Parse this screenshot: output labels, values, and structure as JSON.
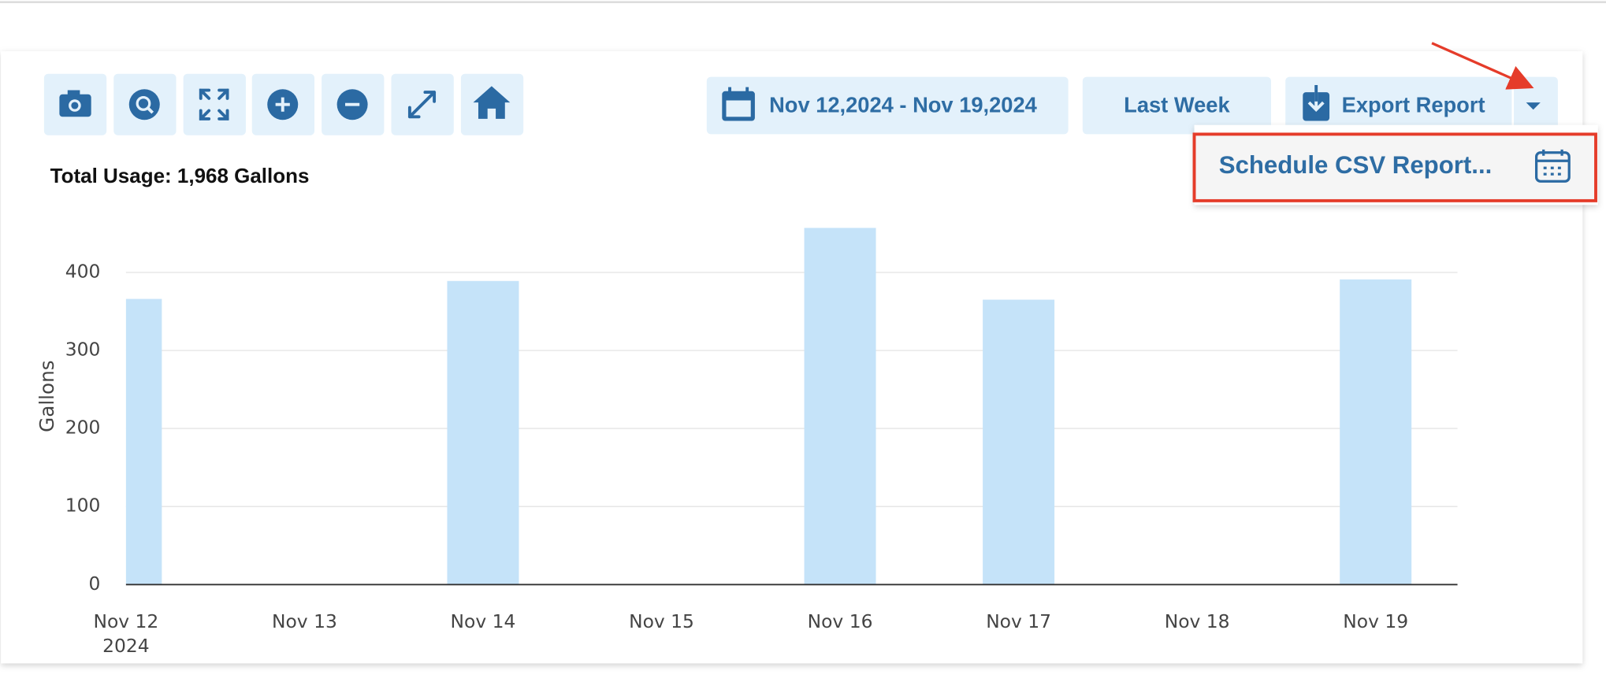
{
  "date_range": "Nov 12,2024 - Nov 19,2024",
  "preset_button": "Last Week",
  "export_button": "Export Report",
  "dropdown": {
    "items": [
      "Schedule CSV Report..."
    ]
  },
  "chart_data": {
    "type": "bar",
    "summary": "Total Usage: 1,968 Gallons",
    "y_label": "Gallons",
    "categories": [
      "Nov 12",
      "Nov 13",
      "Nov 14",
      "Nov 15",
      "Nov 16",
      "Nov 17",
      "Nov 18",
      "Nov 19"
    ],
    "year_label": "2024",
    "values": [
      366,
      null,
      389,
      null,
      457,
      365,
      null,
      391
    ],
    "color": "#c5e3f9",
    "ylim": [
      0,
      480
    ],
    "yticks": [
      0,
      100,
      200,
      300,
      400
    ],
    "grid": true
  }
}
